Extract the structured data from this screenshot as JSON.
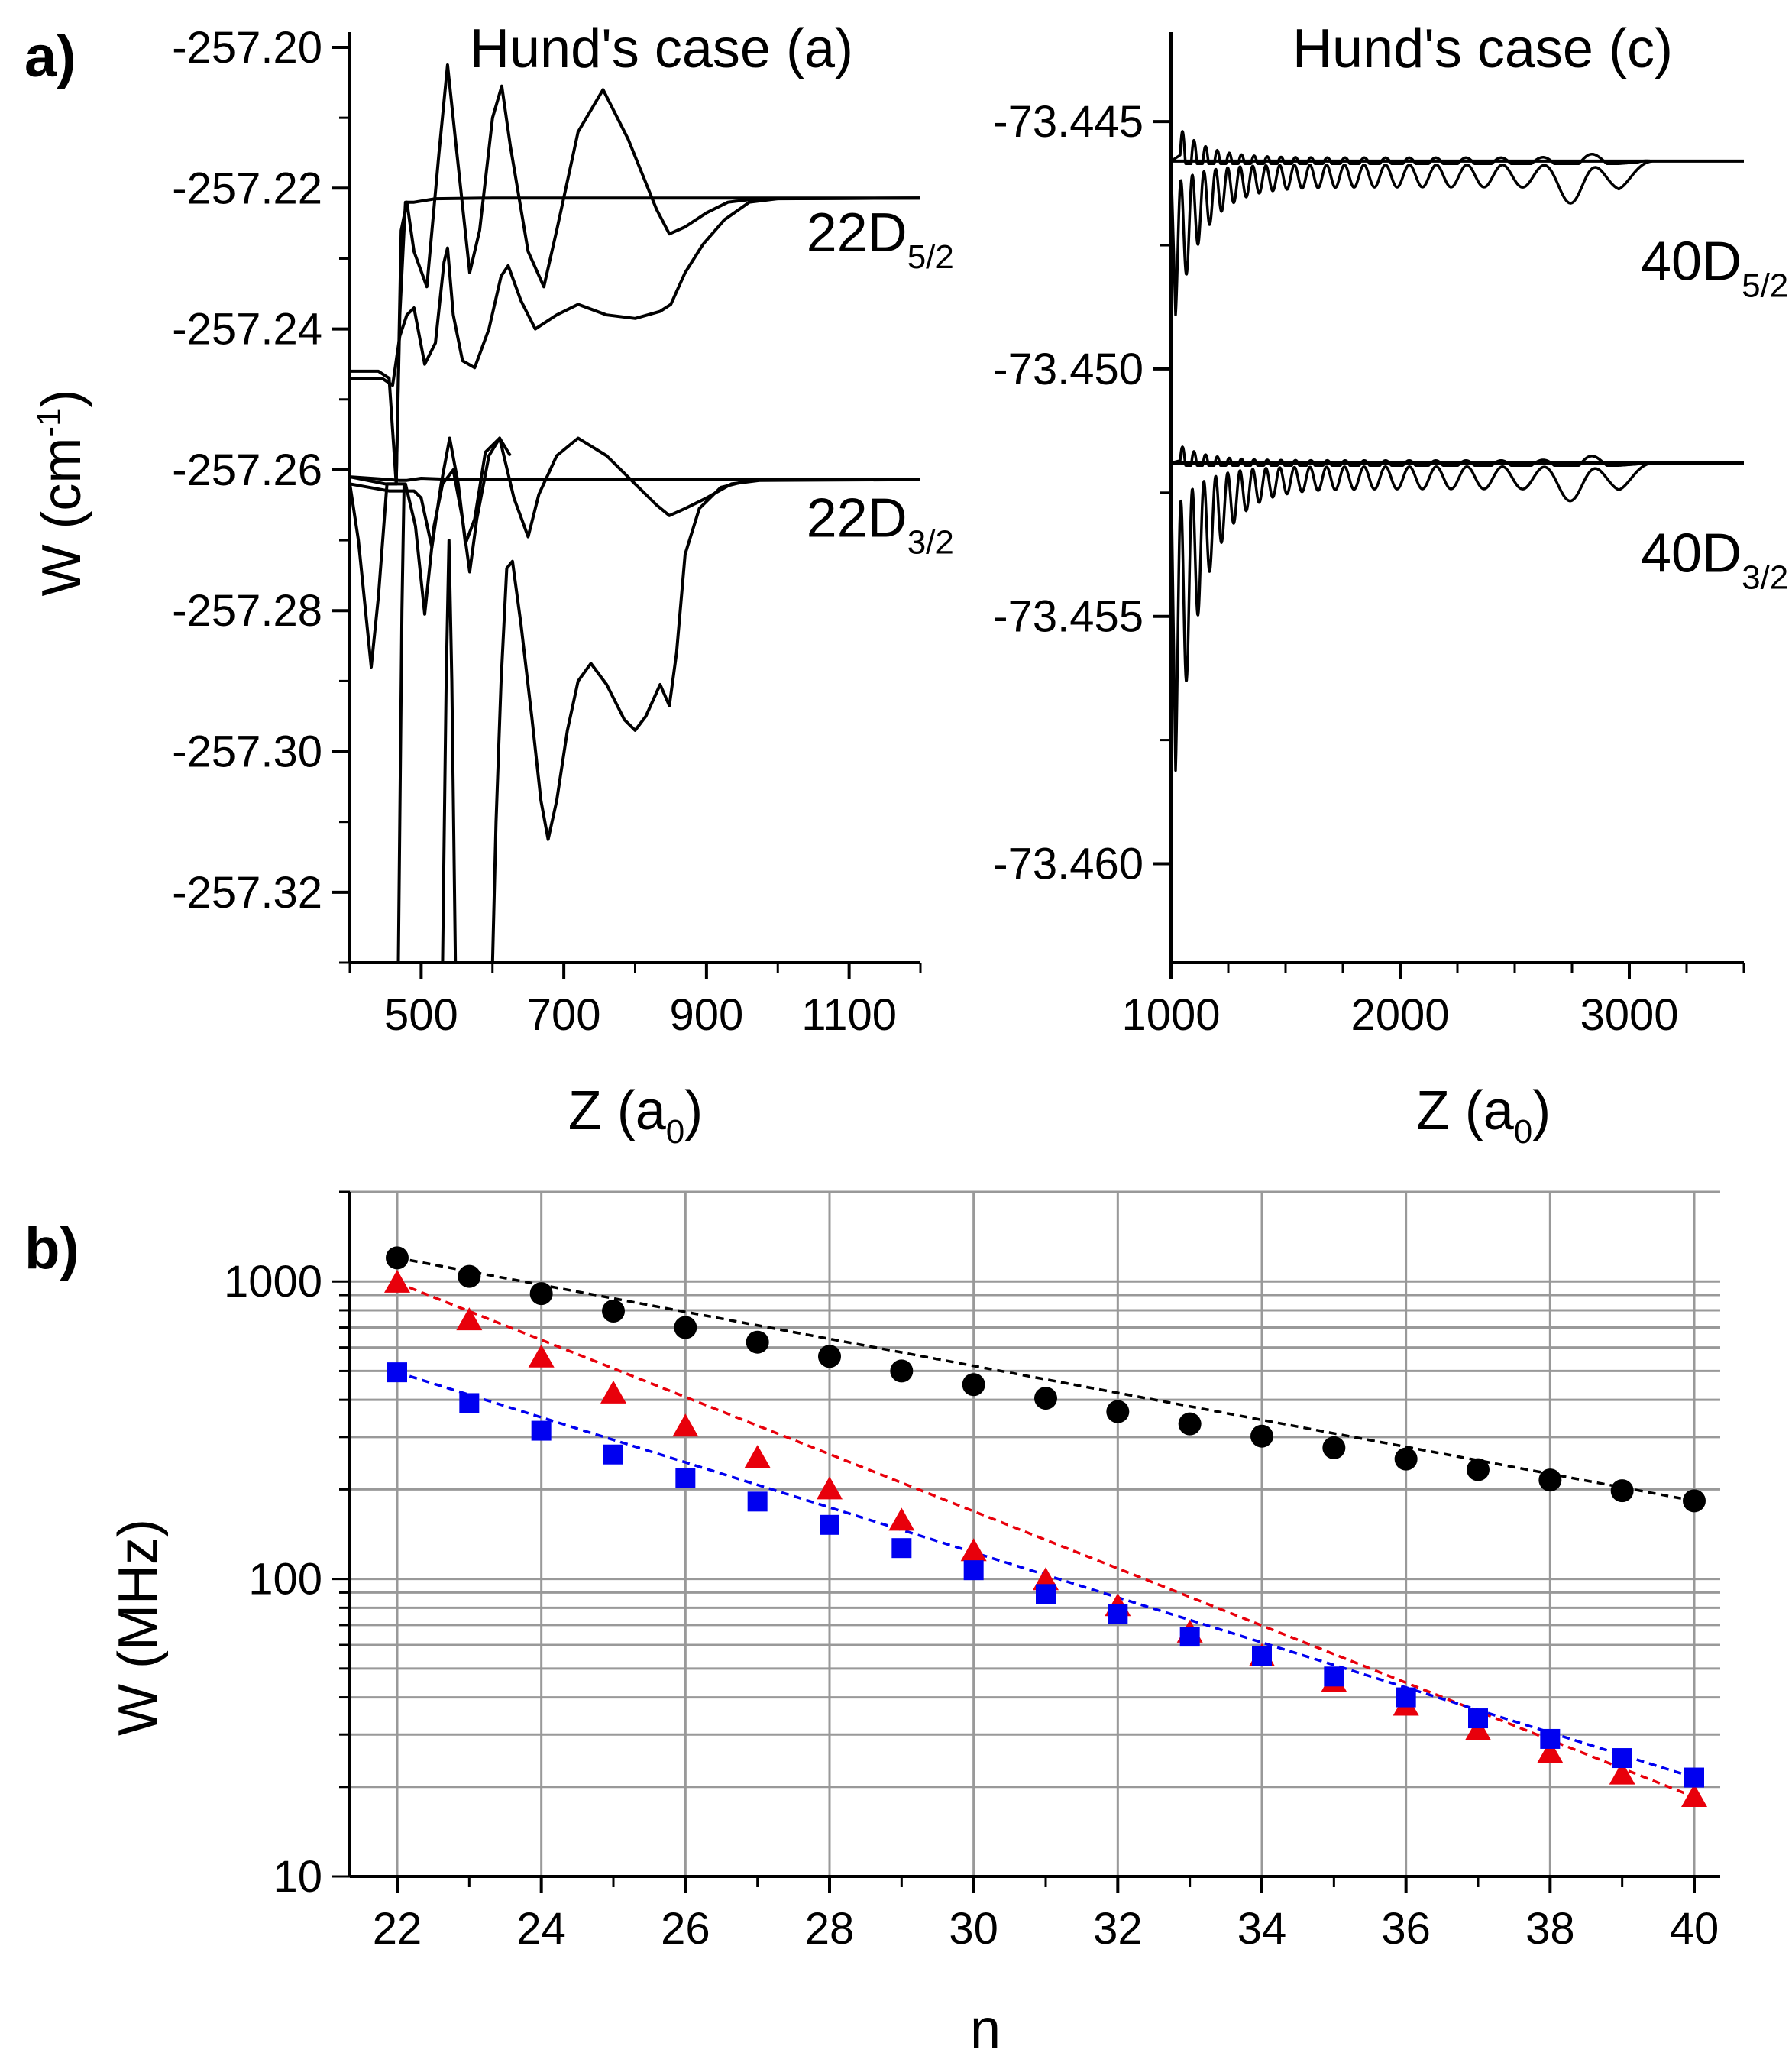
{
  "panel_labels": {
    "a": "a)",
    "b": "b)"
  },
  "chart_data": [
    {
      "type": "line",
      "panel": "a-left",
      "title": "Hund's case (a)",
      "ylabel_main": "W (cm",
      "ylabel_sup": "-1",
      "ylabel_end": ")",
      "xlabel_main": "Z (a",
      "xlabel_sub": "0",
      "xlabel_end": ")",
      "xlim": [
        400,
        1200
      ],
      "ylim": [
        -257.33,
        -257.2
      ],
      "xticks": [
        500,
        700,
        900,
        1100
      ],
      "xtick_labels": [
        "500",
        "700",
        "900",
        "1100"
      ],
      "yticks": [
        -257.2,
        -257.22,
        -257.24,
        -257.26,
        -257.28,
        -257.3,
        -257.32
      ],
      "ytick_labels": [
        "-257.20",
        "-257.22",
        "-257.24",
        "-257.26",
        "-257.28",
        "-257.30",
        "-257.32"
      ],
      "annotations": [
        {
          "main": "22D",
          "sub": "5/2",
          "x": 1040,
          "y": -257.229
        },
        {
          "main": "22D",
          "sub": "3/2",
          "x": 1040,
          "y": -257.2695
        }
      ],
      "series": [
        {
          "points": [
            [
              400,
              -257.246
            ],
            [
              440,
              -257.246
            ],
            [
              455,
              -257.247
            ],
            [
              465,
              -257.262
            ],
            [
              470,
              -257.238
            ],
            [
              478,
              -257.222
            ],
            [
              490,
              -257.222
            ],
            [
              520,
              -257.2215
            ],
            [
              600,
              -257.2214
            ],
            [
              800,
              -257.2214
            ],
            [
              1200,
              -257.2214
            ]
          ]
        },
        {
          "points": [
            [
              400,
              -257.261
            ],
            [
              450,
              -257.262
            ],
            [
              465,
              -257.262
            ],
            [
              472,
              -257.226
            ],
            [
              480,
              -257.222
            ],
            [
              490,
              -257.229
            ],
            [
              508,
              -257.234
            ],
            [
              525,
              -257.215
            ],
            [
              537,
              -257.2025
            ],
            [
              550,
              -257.215
            ],
            [
              568,
              -257.232
            ],
            [
              582,
              -257.226
            ],
            [
              600,
              -257.21
            ],
            [
              613,
              -257.2055
            ],
            [
              625,
              -257.214
            ],
            [
              650,
              -257.229
            ],
            [
              672,
              -257.234
            ],
            [
              690,
              -257.226
            ],
            [
              720,
              -257.212
            ],
            [
              755,
              -257.206
            ],
            [
              790,
              -257.213
            ],
            [
              830,
              -257.223
            ],
            [
              848,
              -257.2265
            ],
            [
              870,
              -257.2255
            ],
            [
              900,
              -257.2235
            ],
            [
              930,
              -257.222
            ],
            [
              970,
              -257.2215
            ],
            [
              1200,
              -257.2214
            ]
          ]
        },
        {
          "points": [
            [
              400,
              -257.247
            ],
            [
              445,
              -257.247
            ],
            [
              460,
              -257.248
            ],
            [
              470,
              -257.241
            ],
            [
              480,
              -257.238
            ],
            [
              490,
              -257.237
            ],
            [
              505,
              -257.245
            ],
            [
              520,
              -257.242
            ],
            [
              532,
              -257.2305
            ],
            [
              537,
              -257.2285
            ],
            [
              545,
              -257.238
            ],
            [
              558,
              -257.2445
            ],
            [
              575,
              -257.2455
            ],
            [
              595,
              -257.24
            ],
            [
              612,
              -257.2325
            ],
            [
              622,
              -257.231
            ],
            [
              640,
              -257.236
            ],
            [
              660,
              -257.24
            ],
            [
              690,
              -257.238
            ],
            [
              720,
              -257.2365
            ],
            [
              760,
              -257.238
            ],
            [
              800,
              -257.2385
            ],
            [
              835,
              -257.2375
            ],
            [
              850,
              -257.2365
            ],
            [
              870,
              -257.232
            ],
            [
              895,
              -257.228
            ],
            [
              925,
              -257.2245
            ],
            [
              960,
              -257.222
            ],
            [
              1000,
              -257.2215
            ],
            [
              1200,
              -257.2214
            ]
          ]
        },
        {
          "points": [
            [
              400,
              -257.261
            ],
            [
              470,
              -257.2615
            ],
            [
              480,
              -257.2615
            ],
            [
              500,
              -257.2612
            ],
            [
              550,
              -257.2614
            ],
            [
              700,
              -257.2614
            ],
            [
              1200,
              -257.2614
            ]
          ]
        },
        {
          "points": [
            [
              400,
              -257.262
            ],
            [
              455,
              -257.263
            ],
            [
              470,
              -257.263
            ],
            [
              480,
              -257.263
            ],
            [
              490,
              -257.263
            ],
            [
              500,
              -257.264
            ],
            [
              515,
              -257.271
            ],
            [
              528,
              -257.262
            ],
            [
              540,
              -257.2555
            ],
            [
              552,
              -257.262
            ],
            [
              562,
              -257.2705
            ],
            [
              575,
              -257.267
            ],
            [
              590,
              -257.2575
            ],
            [
              610,
              -257.2555
            ],
            [
              630,
              -257.264
            ],
            [
              650,
              -257.2695
            ],
            [
              665,
              -257.2635
            ],
            [
              690,
              -257.258
            ],
            [
              720,
              -257.2555
            ],
            [
              760,
              -257.258
            ],
            [
              800,
              -257.262
            ],
            [
              830,
              -257.265
            ],
            [
              848,
              -257.2665
            ],
            [
              870,
              -257.2655
            ],
            [
              900,
              -257.264
            ],
            [
              935,
              -257.262
            ],
            [
              975,
              -257.2615
            ],
            [
              1200,
              -257.2614
            ]
          ]
        },
        {
          "points": [
            [
              400,
              -257.262
            ],
            [
              412,
              -257.27
            ],
            [
              422,
              -257.28
            ],
            [
              430,
              -257.288
            ],
            [
              440,
              -257.278
            ],
            [
              452,
              -257.262
            ],
            [
              460,
              -257.262
            ],
            [
              470,
              -257.262
            ],
            [
              478,
              -257.262
            ],
            [
              492,
              -257.268
            ],
            [
              505,
              -257.2805
            ],
            [
              518,
              -257.268
            ],
            [
              530,
              -257.262
            ],
            [
              545,
              -257.26
            ],
            [
              558,
              -257.267
            ],
            [
              568,
              -257.2745
            ],
            [
              578,
              -257.267
            ],
            [
              595,
              -257.258
            ],
            [
              610,
              -257.2555
            ],
            [
              625,
              -257.258
            ]
          ]
        },
        {
          "points": [
            [
              468,
              -257.33
            ],
            [
              470,
              -257.31
            ],
            [
              473,
              -257.28
            ],
            [
              476,
              -257.262
            ]
          ]
        },
        {
          "points": [
            [
              530,
              -257.33
            ],
            [
              535,
              -257.29
            ],
            [
              539,
              -257.27
            ],
            [
              543,
              -257.29
            ],
            [
              548,
              -257.33
            ]
          ]
        },
        {
          "points": [
            [
              600,
              -257.33
            ],
            [
              605,
              -257.31
            ],
            [
              612,
              -257.29
            ],
            [
              620,
              -257.274
            ],
            [
              628,
              -257.273
            ],
            [
              640,
              -257.282
            ],
            [
              655,
              -257.295
            ],
            [
              668,
              -257.307
            ],
            [
              678,
              -257.3125
            ],
            [
              690,
              -257.307
            ],
            [
              705,
              -257.297
            ],
            [
              720,
              -257.29
            ],
            [
              738,
              -257.2875
            ],
            [
              760,
              -257.2905
            ],
            [
              785,
              -257.2955
            ],
            [
              800,
              -257.297
            ],
            [
              815,
              -257.295
            ],
            [
              835,
              -257.2905
            ],
            [
              848,
              -257.2935
            ],
            [
              858,
              -257.286
            ],
            [
              870,
              -257.272
            ],
            [
              890,
              -257.2655
            ],
            [
              920,
              -257.2625
            ],
            [
              960,
              -257.2615
            ],
            [
              1000,
              -257.2614
            ]
          ]
        }
      ]
    },
    {
      "type": "line",
      "panel": "a-right",
      "title": "Hund's case (c)",
      "xlabel_main": "Z (a",
      "xlabel_sub": "0",
      "xlabel_end": ")",
      "xlim": [
        1000,
        3500
      ],
      "ylim": [
        -73.462,
        -73.4435
      ],
      "xticks": [
        1000,
        2000,
        3000
      ],
      "xtick_labels": [
        "1000",
        "2000",
        "3000"
      ],
      "yticks": [
        -73.445,
        -73.45,
        -73.455,
        -73.46
      ],
      "ytick_labels": [
        "-73.445",
        "-73.450",
        "-73.455",
        "-73.460"
      ],
      "annotations": [
        {
          "main": "40D",
          "sub": "5/2",
          "x": 3050,
          "y": -73.4482
        },
        {
          "main": "40D",
          "sub": "3/2",
          "x": 3050,
          "y": -73.4541
        }
      ],
      "series": [
        {
          "points": [
            [
              1000,
              -73.4458
            ],
            [
              3500,
              -73.4458
            ]
          ]
        },
        {
          "points": [
            [
              1000,
              -73.4519
            ],
            [
              3500,
              -73.4519
            ]
          ]
        }
      ],
      "oscillations": [
        {
          "base": -73.4458,
          "mode": "upper",
          "start": 1040,
          "end": 3100,
          "amp0": 0.0007,
          "ampmin": 0.00012,
          "amp_end": 0.0002,
          "period0": 50,
          "period1": 300
        },
        {
          "base": -73.4458,
          "mode": "lower",
          "start": 1020,
          "end": 3100,
          "amp0": 0.003,
          "ampmin": 0.0005,
          "amp_end": 0.0009,
          "period0": 50,
          "period1": 300
        },
        {
          "base": -73.4519,
          "mode": "upper",
          "start": 1040,
          "end": 3100,
          "amp0": 0.0004,
          "ampmin": 0.0001,
          "amp_end": 0.0002,
          "period0": 50,
          "period1": 300
        },
        {
          "base": -73.4519,
          "mode": "lower",
          "start": 1020,
          "end": 3100,
          "amp0": 0.006,
          "ampmin": 0.0005,
          "amp_end": 0.0008,
          "period0": 50,
          "period1": 300
        }
      ]
    },
    {
      "type": "scatter",
      "panel": "b",
      "ylabel": "W (MHz)",
      "xlabel": "n",
      "yscale": "log",
      "grid": true,
      "xlim": [
        21.7,
        40.4
      ],
      "ylim": [
        10,
        2000
      ],
      "xticks": [
        22,
        24,
        26,
        28,
        30,
        32,
        34,
        36,
        38,
        40
      ],
      "xtick_labels": [
        "22",
        "24",
        "26",
        "28",
        "30",
        "32",
        "34",
        "36",
        "38",
        "40"
      ],
      "yticks": [
        10,
        100,
        1000
      ],
      "ytick_labels": [
        "10",
        "100",
        "1000"
      ],
      "x": [
        22,
        23,
        24,
        25,
        26,
        27,
        28,
        29,
        30,
        31,
        32,
        33,
        34,
        35,
        36,
        37,
        38,
        39,
        40
      ],
      "series": [
        {
          "marker": "circle",
          "color": "#000000",
          "values": [
            1200,
            1040,
            910,
            795,
            700,
            625,
            560,
            500,
            450,
            405,
            365,
            332,
            302,
            276,
            253,
            233,
            215,
            198,
            183
          ]
        },
        {
          "marker": "triangle",
          "color": "#e8000b",
          "values": [
            990,
            740,
            555,
            420,
            325,
            255,
            200,
            157,
            124,
            99,
            81,
            66,
            55,
            45,
            37.5,
            31,
            26,
            22,
            18.5
          ]
        },
        {
          "marker": "square",
          "color": "#0000f0",
          "values": [
            495,
            390,
            315,
            262,
            218,
            182,
            152,
            127,
            107,
            89,
            76,
            64,
            55,
            47,
            40,
            34,
            29,
            25,
            21.5
          ]
        }
      ]
    }
  ]
}
